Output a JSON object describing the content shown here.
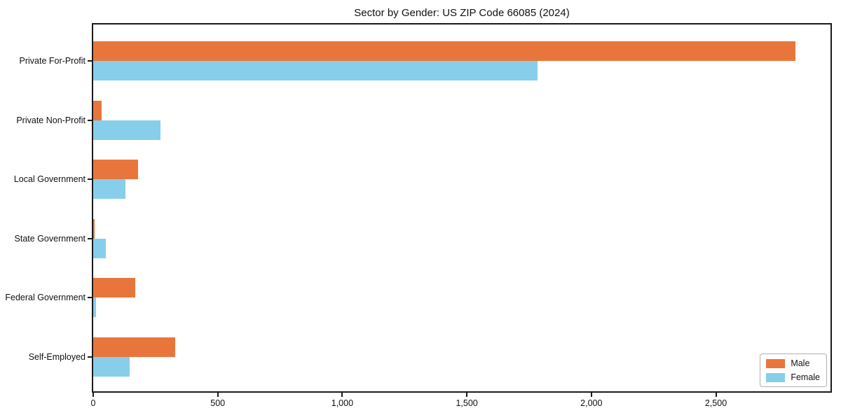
{
  "chart_data": {
    "type": "bar",
    "orientation": "horizontal",
    "title": "Sector by Gender: US ZIP Code 66085 (2024)",
    "categories": [
      "Private For-Profit",
      "Private Non-Profit",
      "Local Government",
      "State Government",
      "Federal Government",
      "Self-Employed"
    ],
    "series": [
      {
        "name": "Male",
        "color": "#E8763C",
        "values": [
          2820,
          35,
          180,
          5,
          170,
          330
        ]
      },
      {
        "name": "Female",
        "color": "#87CEEB",
        "values": [
          1785,
          270,
          130,
          50,
          10,
          145
        ]
      }
    ],
    "xlim": [
      0,
      2960
    ],
    "xticks": [
      {
        "value": 0,
        "label": "0"
      },
      {
        "value": 500,
        "label": "500"
      },
      {
        "value": 1000,
        "label": "1,000"
      },
      {
        "value": 1500,
        "label": "1,500"
      },
      {
        "value": 2000,
        "label": "2,000"
      },
      {
        "value": 2500,
        "label": "2,500"
      }
    ],
    "xlabel": "",
    "ylabel": "",
    "grid": false,
    "legend_position": "lower right",
    "frame_color": "#1a1a1a",
    "background_color": "#ffffff"
  }
}
